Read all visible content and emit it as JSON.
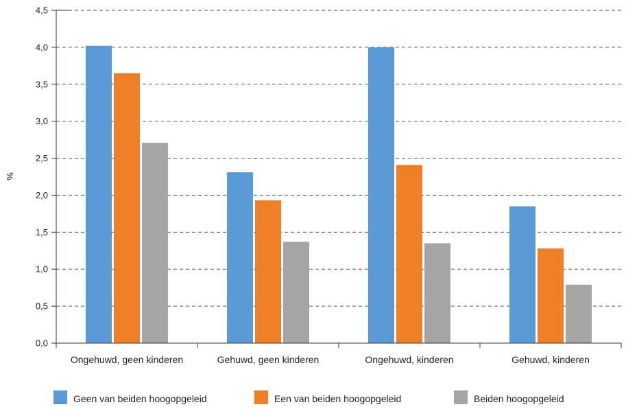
{
  "chart_data": {
    "type": "bar",
    "ylabel": "%",
    "ylim": [
      0,
      4.5
    ],
    "yticks": [
      "0,0",
      "0,5",
      "1,0",
      "1,5",
      "2,0",
      "2,5",
      "3,0",
      "3,5",
      "4,0",
      "4,5"
    ],
    "grid": true,
    "legend_position": "bottom",
    "categories": [
      "Ongehuwd, geen kinderen",
      "Gehuwd, geen kinderen",
      "Ongehuwd, kinderen",
      "Gehuwd, kinderen"
    ],
    "series": [
      {
        "name": "Geen van beiden hoogopgeleid",
        "color": "#5b9bd5",
        "values": [
          4.02,
          2.31,
          4.0,
          1.85
        ]
      },
      {
        "name": "Een van beiden hoogopgeleid",
        "color": "#f08027",
        "values": [
          3.65,
          1.93,
          2.41,
          1.28
        ]
      },
      {
        "name": "Beiden hoogopgeleid",
        "color": "#a5a5a5",
        "values": [
          2.71,
          1.37,
          1.35,
          0.79
        ]
      }
    ]
  }
}
